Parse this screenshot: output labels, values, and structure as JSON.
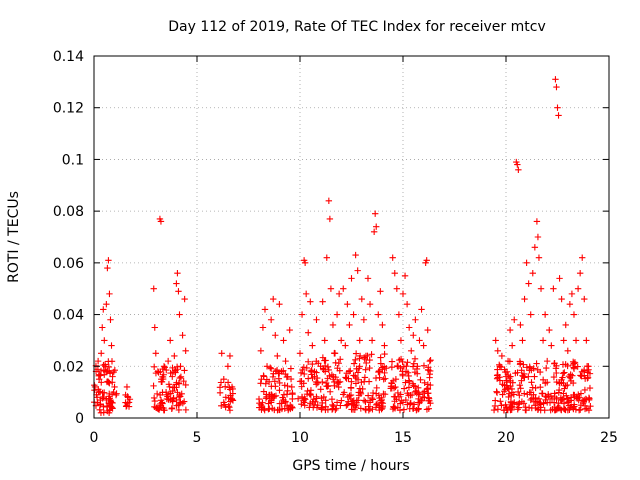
{
  "chart_data": {
    "type": "scatter",
    "title": "Day 112 of 2019, Rate Of TEC Index for receiver mtcv",
    "xlabel": "GPS time / hours",
    "ylabel": "ROTI / TECUs",
    "xlim": [
      0,
      25
    ],
    "ylim": [
      0,
      0.14
    ],
    "xticks": [
      0,
      5,
      10,
      15,
      20,
      25
    ],
    "xtick_labels": [
      "0",
      "5",
      "10",
      "15",
      "20",
      "25"
    ],
    "yticks": [
      0,
      0.02,
      0.04,
      0.06,
      0.08,
      0.1,
      0.12,
      0.14
    ],
    "ytick_labels": [
      "0",
      "0.02",
      "0.04",
      "0.06",
      "0.08",
      "0.1",
      "0.12",
      "0.14"
    ],
    "grid": true,
    "marker": "+",
    "color": "#ff0000",
    "series": [
      {
        "name": "ROTI",
        "points": [
          [
            0.05,
            0.012
          ],
          [
            0.1,
            0.018
          ],
          [
            0.15,
            0.008
          ],
          [
            0.2,
            0.022
          ],
          [
            0.25,
            0.015
          ],
          [
            0.3,
            0.01
          ],
          [
            0.35,
            0.025
          ],
          [
            0.4,
            0.035
          ],
          [
            0.45,
            0.042
          ],
          [
            0.5,
            0.03
          ],
          [
            0.55,
            0.02
          ],
          [
            0.6,
            0.044
          ],
          [
            0.65,
            0.058
          ],
          [
            0.7,
            0.061
          ],
          [
            0.75,
            0.048
          ],
          [
            0.8,
            0.038
          ],
          [
            0.85,
            0.028
          ],
          [
            0.9,
            0.016
          ],
          [
            0.95,
            0.01
          ],
          [
            0.3,
            0.005
          ],
          [
            0.6,
            0.007
          ],
          [
            0.85,
            0.006
          ],
          [
            1.6,
            0.012
          ],
          [
            1.65,
            0.008
          ],
          [
            1.7,
            0.006
          ],
          [
            2.9,
            0.05
          ],
          [
            2.95,
            0.035
          ],
          [
            3.0,
            0.025
          ],
          [
            3.1,
            0.018
          ],
          [
            3.2,
            0.077
          ],
          [
            3.25,
            0.076
          ],
          [
            3.3,
            0.014
          ],
          [
            3.4,
            0.02
          ],
          [
            3.5,
            0.01
          ],
          [
            3.6,
            0.022
          ],
          [
            3.7,
            0.03
          ],
          [
            3.8,
            0.016
          ],
          [
            3.9,
            0.024
          ],
          [
            4.0,
            0.052
          ],
          [
            4.05,
            0.056
          ],
          [
            4.1,
            0.049
          ],
          [
            4.15,
            0.04
          ],
          [
            4.2,
            0.02
          ],
          [
            4.3,
            0.032
          ],
          [
            4.4,
            0.046
          ],
          [
            4.45,
            0.026
          ],
          [
            3.3,
            0.006
          ],
          [
            3.7,
            0.007
          ],
          [
            4.2,
            0.006
          ],
          [
            6.2,
            0.025
          ],
          [
            6.3,
            0.015
          ],
          [
            6.4,
            0.008
          ],
          [
            6.5,
            0.02
          ],
          [
            6.6,
            0.024
          ],
          [
            6.7,
            0.012
          ],
          [
            6.3,
            0.006
          ],
          [
            6.6,
            0.003
          ],
          [
            8.1,
            0.026
          ],
          [
            8.2,
            0.035
          ],
          [
            8.3,
            0.042
          ],
          [
            8.4,
            0.02
          ],
          [
            8.5,
            0.014
          ],
          [
            8.6,
            0.038
          ],
          [
            8.7,
            0.046
          ],
          [
            8.8,
            0.032
          ],
          [
            8.9,
            0.024
          ],
          [
            9.0,
            0.044
          ],
          [
            9.1,
            0.018
          ],
          [
            9.2,
            0.03
          ],
          [
            9.3,
            0.022
          ],
          [
            9.4,
            0.016
          ],
          [
            9.5,
            0.034
          ],
          [
            9.6,
            0.012
          ],
          [
            8.6,
            0.006
          ],
          [
            9.2,
            0.007
          ],
          [
            10.0,
            0.025
          ],
          [
            10.1,
            0.04
          ],
          [
            10.2,
            0.061
          ],
          [
            10.25,
            0.06
          ],
          [
            10.3,
            0.048
          ],
          [
            10.4,
            0.033
          ],
          [
            10.5,
            0.045
          ],
          [
            10.6,
            0.028
          ],
          [
            10.7,
            0.016
          ],
          [
            10.8,
            0.038
          ],
          [
            10.2,
            0.006
          ],
          [
            11.0,
            0.02
          ],
          [
            11.1,
            0.045
          ],
          [
            11.2,
            0.03
          ],
          [
            11.3,
            0.062
          ],
          [
            11.4,
            0.084
          ],
          [
            11.45,
            0.077
          ],
          [
            11.5,
            0.05
          ],
          [
            11.6,
            0.036
          ],
          [
            11.7,
            0.025
          ],
          [
            11.8,
            0.04
          ],
          [
            11.9,
            0.048
          ],
          [
            12.0,
            0.03
          ],
          [
            12.1,
            0.05
          ],
          [
            12.2,
            0.028
          ],
          [
            12.3,
            0.044
          ],
          [
            12.4,
            0.036
          ],
          [
            12.5,
            0.054
          ],
          [
            12.6,
            0.04
          ],
          [
            12.7,
            0.063
          ],
          [
            12.8,
            0.057
          ],
          [
            12.9,
            0.03
          ],
          [
            13.0,
            0.046
          ],
          [
            13.1,
            0.038
          ],
          [
            13.2,
            0.024
          ],
          [
            13.3,
            0.054
          ],
          [
            13.4,
            0.044
          ],
          [
            13.5,
            0.03
          ],
          [
            13.6,
            0.072
          ],
          [
            13.65,
            0.079
          ],
          [
            13.7,
            0.074
          ],
          [
            13.8,
            0.04
          ],
          [
            13.9,
            0.049
          ],
          [
            14.0,
            0.036
          ],
          [
            14.1,
            0.028
          ],
          [
            11.8,
            0.006
          ],
          [
            12.6,
            0.005
          ],
          [
            13.4,
            0.006
          ],
          [
            14.5,
            0.062
          ],
          [
            14.6,
            0.056
          ],
          [
            14.7,
            0.05
          ],
          [
            14.8,
            0.04
          ],
          [
            14.9,
            0.03
          ],
          [
            15.0,
            0.048
          ],
          [
            15.1,
            0.055
          ],
          [
            15.2,
            0.044
          ],
          [
            15.3,
            0.035
          ],
          [
            15.4,
            0.026
          ],
          [
            15.5,
            0.032
          ],
          [
            15.6,
            0.038
          ],
          [
            15.7,
            0.02
          ],
          [
            15.8,
            0.03
          ],
          [
            15.9,
            0.042
          ],
          [
            16.0,
            0.028
          ],
          [
            16.1,
            0.06
          ],
          [
            16.15,
            0.061
          ],
          [
            16.2,
            0.034
          ],
          [
            16.3,
            0.022
          ],
          [
            15.0,
            0.006
          ],
          [
            15.8,
            0.006
          ],
          [
            19.5,
            0.03
          ],
          [
            19.6,
            0.026
          ],
          [
            19.7,
            0.02
          ],
          [
            19.8,
            0.024
          ],
          [
            20.0,
            0.016
          ],
          [
            20.1,
            0.022
          ],
          [
            20.2,
            0.034
          ],
          [
            20.3,
            0.028
          ],
          [
            20.4,
            0.038
          ],
          [
            20.5,
            0.099
          ],
          [
            20.55,
            0.098
          ],
          [
            20.6,
            0.096
          ],
          [
            20.7,
            0.036
          ],
          [
            20.8,
            0.03
          ],
          [
            20.9,
            0.046
          ],
          [
            21.0,
            0.06
          ],
          [
            21.1,
            0.052
          ],
          [
            21.2,
            0.04
          ],
          [
            21.3,
            0.056
          ],
          [
            21.4,
            0.066
          ],
          [
            21.5,
            0.076
          ],
          [
            21.55,
            0.07
          ],
          [
            21.6,
            0.062
          ],
          [
            21.7,
            0.05
          ],
          [
            21.8,
            0.03
          ],
          [
            21.9,
            0.04
          ],
          [
            22.0,
            0.022
          ],
          [
            22.1,
            0.034
          ],
          [
            22.2,
            0.028
          ],
          [
            22.3,
            0.05
          ],
          [
            22.4,
            0.131
          ],
          [
            22.45,
            0.128
          ],
          [
            22.5,
            0.12
          ],
          [
            22.55,
            0.117
          ],
          [
            22.6,
            0.054
          ],
          [
            22.7,
            0.046
          ],
          [
            22.8,
            0.03
          ],
          [
            22.9,
            0.036
          ],
          [
            23.0,
            0.026
          ],
          [
            23.1,
            0.044
          ],
          [
            23.2,
            0.048
          ],
          [
            23.3,
            0.04
          ],
          [
            23.4,
            0.03
          ],
          [
            23.5,
            0.05
          ],
          [
            23.6,
            0.056
          ],
          [
            23.7,
            0.062
          ],
          [
            23.8,
            0.046
          ],
          [
            23.9,
            0.03
          ],
          [
            24.0,
            0.02
          ],
          [
            20.4,
            0.006
          ],
          [
            21.2,
            0.007
          ],
          [
            22.0,
            0.006
          ],
          [
            23.0,
            0.006
          ],
          [
            23.8,
            0.007
          ]
        ],
        "dense_bands": [
          {
            "x_range": [
              0.0,
              1.1
            ],
            "y_range": [
              0.002,
              0.022
            ],
            "count": 70
          },
          {
            "x_range": [
              1.5,
              1.75
            ],
            "y_range": [
              0.003,
              0.01
            ],
            "count": 8
          },
          {
            "x_range": [
              2.85,
              4.5
            ],
            "y_range": [
              0.003,
              0.02
            ],
            "count": 80
          },
          {
            "x_range": [
              6.1,
              6.75
            ],
            "y_range": [
              0.004,
              0.014
            ],
            "count": 20
          },
          {
            "x_range": [
              8.0,
              9.7
            ],
            "y_range": [
              0.003,
              0.02
            ],
            "count": 80
          },
          {
            "x_range": [
              9.9,
              10.9
            ],
            "y_range": [
              0.004,
              0.022
            ],
            "count": 50
          },
          {
            "x_range": [
              11.0,
              14.2
            ],
            "y_range": [
              0.003,
              0.026
            ],
            "count": 170
          },
          {
            "x_range": [
              14.4,
              16.4
            ],
            "y_range": [
              0.003,
              0.024
            ],
            "count": 110
          },
          {
            "x_range": [
              19.4,
              24.1
            ],
            "y_range": [
              0.003,
              0.022
            ],
            "count": 260
          }
        ]
      }
    ]
  }
}
